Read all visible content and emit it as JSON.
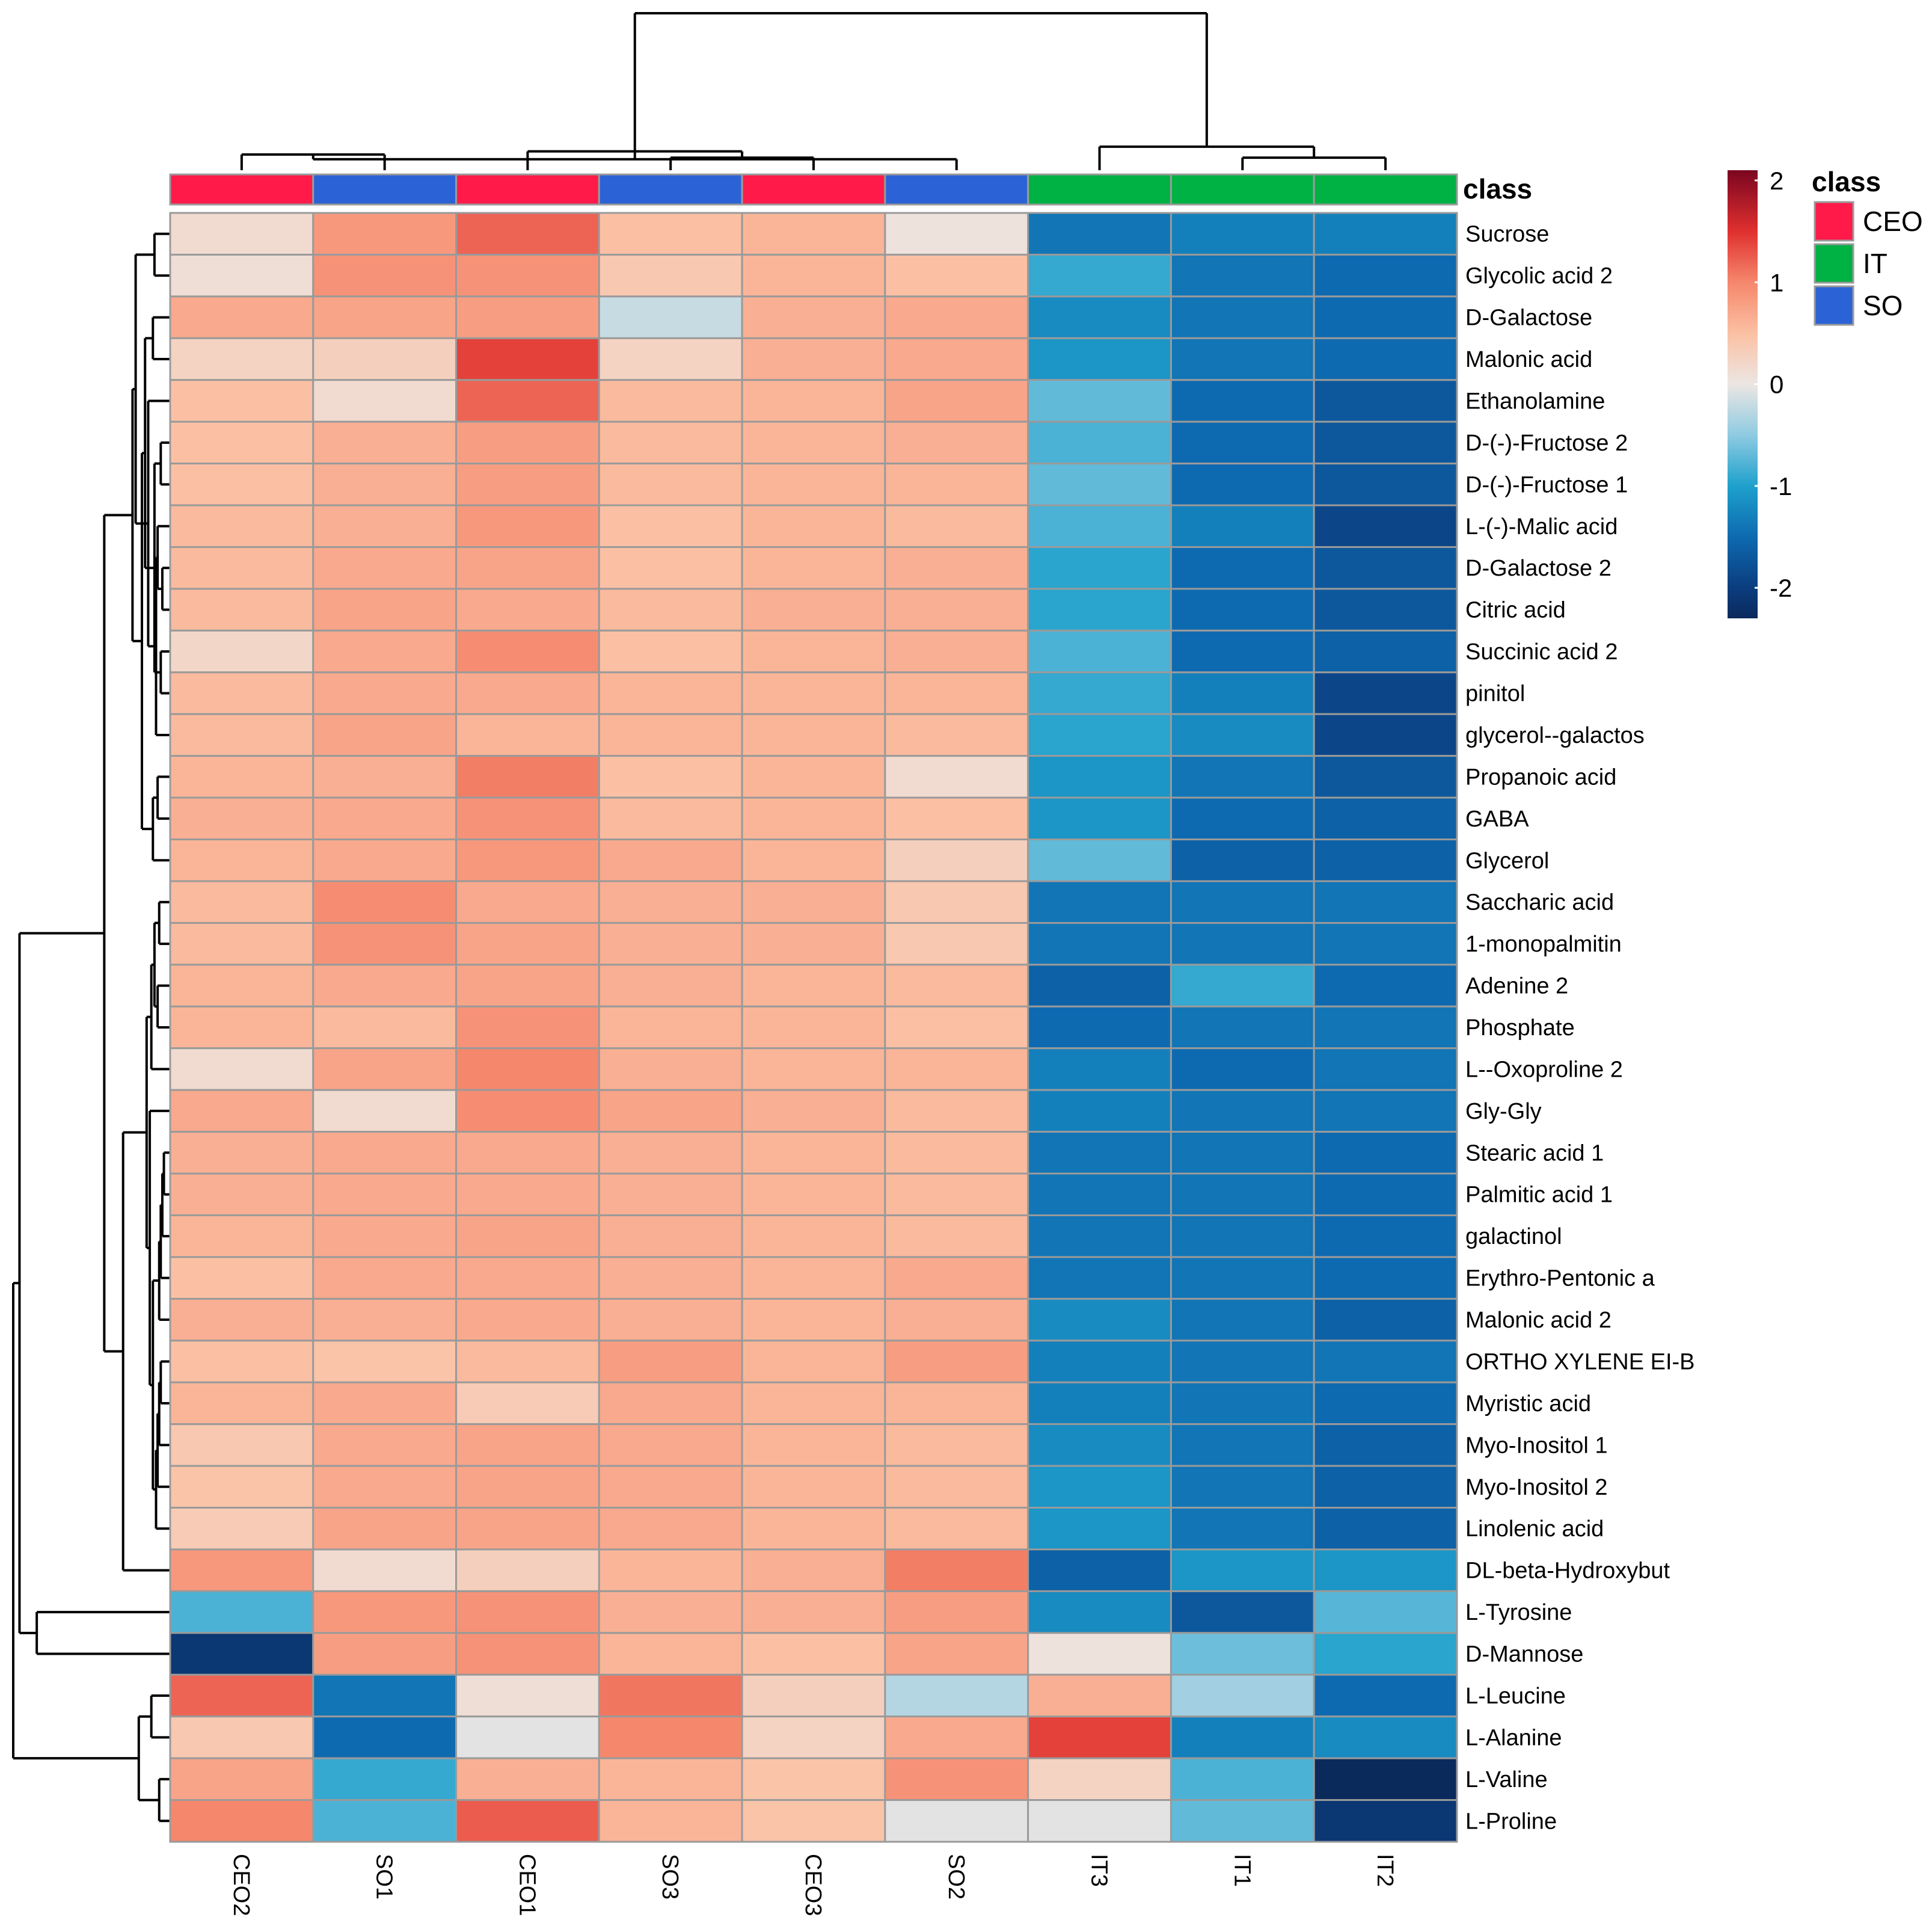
{
  "chart_data": {
    "type": "heatmap",
    "title": "",
    "columns": [
      "CEO2",
      "SO1",
      "CEO1",
      "SO3",
      "CEO3",
      "SO2",
      "IT3",
      "IT1",
      "IT2"
    ],
    "column_classes": [
      "CEO",
      "SO",
      "CEO",
      "SO",
      "CEO",
      "SO",
      "IT",
      "IT",
      "IT"
    ],
    "annotation_title": "class",
    "rows": [
      "Sucrose",
      "Glycolic acid   2",
      "D-Galactose",
      "Malonic acid",
      "Ethanolamine",
      "D-(-)-Fructose 2",
      "D-(-)-Fructose  1",
      "L-(-)-Malic acid",
      "D-Galactose 2",
      "Citric acid",
      "Succinic acid   2",
      "pinitol",
      "glycerol--galactos",
      "Propanoic acid",
      "GABA",
      "Glycerol",
      "Saccharic acid",
      "1-monopalmitin",
      "Adenine   2",
      "Phosphate",
      "L--Oxoproline   2",
      "Gly-Gly",
      "Stearic acid   1",
      "Palmitic acid   1",
      "galactinol",
      "Erythro-Pentonic a",
      "Malonic acid   2",
      "ORTHO XYLENE EI-B",
      "Myristic acid",
      "Myo-Inositol  1",
      "Myo-Inositol   2",
      "Linolenic acid",
      "DL-beta-Hydroxybut",
      "L-Tyrosine",
      "D-Mannose",
      "L-Leucine",
      "L-Alanine",
      "L-Valine",
      "L-Proline"
    ],
    "values": [
      [
        0.15,
        0.85,
        1.2,
        0.5,
        0.6,
        0.05,
        -1.4,
        -1.3,
        -1.3
      ],
      [
        0.1,
        0.9,
        0.9,
        0.4,
        0.6,
        0.5,
        -0.9,
        -1.4,
        -1.5
      ],
      [
        0.7,
        0.75,
        0.8,
        -0.2,
        0.65,
        0.7,
        -1.2,
        -1.4,
        -1.5
      ],
      [
        0.25,
        0.3,
        1.4,
        0.25,
        0.65,
        0.7,
        -1.1,
        -1.4,
        -1.5
      ],
      [
        0.5,
        0.15,
        1.2,
        0.55,
        0.6,
        0.75,
        -0.7,
        -1.5,
        -1.7
      ],
      [
        0.5,
        0.65,
        0.8,
        0.55,
        0.6,
        0.65,
        -0.8,
        -1.5,
        -1.7
      ],
      [
        0.5,
        0.65,
        0.8,
        0.55,
        0.6,
        0.6,
        -0.7,
        -1.5,
        -1.7
      ],
      [
        0.55,
        0.65,
        0.85,
        0.5,
        0.6,
        0.55,
        -0.8,
        -1.3,
        -1.9
      ],
      [
        0.55,
        0.7,
        0.75,
        0.5,
        0.6,
        0.65,
        -0.95,
        -1.5,
        -1.7
      ],
      [
        0.55,
        0.75,
        0.7,
        0.55,
        0.65,
        0.65,
        -0.95,
        -1.5,
        -1.7
      ],
      [
        0.2,
        0.7,
        0.95,
        0.5,
        0.6,
        0.65,
        -0.8,
        -1.5,
        -1.6
      ],
      [
        0.55,
        0.7,
        0.7,
        0.6,
        0.6,
        0.6,
        -0.9,
        -1.3,
        -1.9
      ],
      [
        0.55,
        0.75,
        0.6,
        0.6,
        0.6,
        0.55,
        -0.95,
        -1.2,
        -1.9
      ],
      [
        0.6,
        0.65,
        1.05,
        0.5,
        0.6,
        0.15,
        -1.1,
        -1.4,
        -1.7
      ],
      [
        0.65,
        0.7,
        0.9,
        0.55,
        0.6,
        0.5,
        -1.1,
        -1.5,
        -1.6
      ],
      [
        0.6,
        0.7,
        0.85,
        0.7,
        0.6,
        0.3,
        -0.7,
        -1.6,
        -1.6
      ],
      [
        0.55,
        0.95,
        0.7,
        0.65,
        0.65,
        0.4,
        -1.4,
        -1.4,
        -1.4
      ],
      [
        0.55,
        0.9,
        0.75,
        0.65,
        0.65,
        0.4,
        -1.4,
        -1.4,
        -1.4
      ],
      [
        0.6,
        0.7,
        0.75,
        0.65,
        0.6,
        0.55,
        -1.6,
        -0.9,
        -1.5
      ],
      [
        0.6,
        0.55,
        0.9,
        0.6,
        0.6,
        0.5,
        -1.5,
        -1.4,
        -1.4
      ],
      [
        0.15,
        0.75,
        1.0,
        0.65,
        0.6,
        0.6,
        -1.3,
        -1.5,
        -1.4
      ],
      [
        0.7,
        0.15,
        0.95,
        0.75,
        0.65,
        0.55,
        -1.3,
        -1.4,
        -1.4
      ],
      [
        0.65,
        0.7,
        0.7,
        0.65,
        0.6,
        0.55,
        -1.4,
        -1.4,
        -1.5
      ],
      [
        0.65,
        0.7,
        0.7,
        0.65,
        0.6,
        0.55,
        -1.4,
        -1.4,
        -1.5
      ],
      [
        0.6,
        0.7,
        0.75,
        0.65,
        0.6,
        0.55,
        -1.4,
        -1.4,
        -1.5
      ],
      [
        0.5,
        0.7,
        0.7,
        0.65,
        0.6,
        0.7,
        -1.4,
        -1.4,
        -1.5
      ],
      [
        0.65,
        0.65,
        0.7,
        0.65,
        0.6,
        0.65,
        -1.2,
        -1.4,
        -1.6
      ],
      [
        0.5,
        0.45,
        0.55,
        0.8,
        0.6,
        0.8,
        -1.3,
        -1.4,
        -1.4
      ],
      [
        0.6,
        0.7,
        0.35,
        0.7,
        0.6,
        0.6,
        -1.3,
        -1.4,
        -1.5
      ],
      [
        0.4,
        0.7,
        0.75,
        0.7,
        0.6,
        0.55,
        -1.2,
        -1.4,
        -1.6
      ],
      [
        0.45,
        0.7,
        0.75,
        0.7,
        0.6,
        0.55,
        -1.1,
        -1.4,
        -1.6
      ],
      [
        0.35,
        0.75,
        0.75,
        0.7,
        0.6,
        0.55,
        -1.1,
        -1.4,
        -1.6
      ],
      [
        0.85,
        0.15,
        0.3,
        0.6,
        0.65,
        1.05,
        -1.6,
        -1.1,
        -1.1
      ],
      [
        -0.8,
        0.85,
        0.9,
        0.65,
        0.65,
        0.8,
        -1.2,
        -1.7,
        -0.75
      ],
      [
        -2.1,
        0.8,
        0.9,
        0.6,
        0.5,
        0.75,
        0.05,
        -0.65,
        -0.95
      ],
      [
        1.2,
        -1.4,
        0.1,
        1.1,
        0.3,
        -0.3,
        0.65,
        -0.4,
        -1.5
      ],
      [
        0.4,
        -1.5,
        -0.05,
        1.0,
        0.25,
        0.7,
        1.4,
        -1.3,
        -1.2
      ],
      [
        0.75,
        -0.9,
        0.65,
        0.6,
        0.45,
        0.9,
        0.25,
        -0.8,
        -2.3
      ],
      [
        1.0,
        -0.8,
        1.25,
        0.6,
        0.45,
        -0.05,
        -0.05,
        -0.7,
        -2.1
      ]
    ],
    "color_scale": {
      "range": [
        -2.3,
        2.1
      ],
      "ticks": [
        2,
        1,
        0,
        -1,
        -2
      ],
      "stops": [
        [
          -2.3,
          "#0b2a5c"
        ],
        [
          -2.0,
          "#0b3d7e"
        ],
        [
          -1.5,
          "#0e6ab0"
        ],
        [
          -1.0,
          "#1ea1cc"
        ],
        [
          -0.5,
          "#8fcbe2"
        ],
        [
          0.0,
          "#ece6e3"
        ],
        [
          0.5,
          "#fbc0a3"
        ],
        [
          1.0,
          "#f5876c"
        ],
        [
          1.5,
          "#e0302f"
        ],
        [
          2.1,
          "#7a0520"
        ]
      ]
    },
    "legend": {
      "title": "class",
      "items": [
        {
          "label": "CEO",
          "color": "#ff1a4a"
        },
        {
          "label": "IT",
          "color": "#00b143"
        },
        {
          "label": "SO",
          "color": "#2b62d6"
        }
      ]
    },
    "column_tree": {
      "leaves": 9,
      "nodes": [
        [
          0,
          1,
          0.1
        ],
        [
          3,
          4,
          0.08
        ],
        [
          9,
          5,
          0.07
        ],
        [
          2,
          10,
          0.12
        ],
        [
          8,
          7,
          0.08
        ],
        [
          11,
          12,
          0.12
        ],
        [
          6,
          13,
          0.15
        ],
        [
          14,
          15,
          1.0
        ]
      ]
    },
    "row_tree": {
      "leaves": 39,
      "nodes": [
        [
          0,
          1,
          0.1
        ],
        [
          5,
          6,
          0.06
        ],
        [
          8,
          9,
          0.05
        ],
        [
          10,
          11,
          0.06
        ],
        [
          41,
          7,
          0.08
        ],
        [
          42,
          40,
          0.1
        ],
        [
          43,
          12,
          0.09
        ],
        [
          2,
          3,
          0.11
        ],
        [
          45,
          4,
          0.14
        ],
        [
          44,
          46,
          0.16
        ],
        [
          13,
          14,
          0.08
        ],
        [
          49,
          15,
          0.11
        ],
        [
          48,
          50,
          0.18
        ],
        [
          39,
          47,
          0.22
        ],
        [
          52,
          51,
          0.24
        ],
        [
          22,
          23,
          0.04
        ],
        [
          54,
          24,
          0.05
        ],
        [
          55,
          25,
          0.06
        ],
        [
          56,
          26,
          0.07
        ],
        [
          27,
          28,
          0.06
        ],
        [
          58,
          29,
          0.07
        ],
        [
          59,
          30,
          0.08
        ],
        [
          60,
          31,
          0.09
        ],
        [
          57,
          61,
          0.11
        ],
        [
          62,
          21,
          0.13
        ],
        [
          16,
          17,
          0.07
        ],
        [
          18,
          19,
          0.08
        ],
        [
          64,
          65,
          0.1
        ],
        [
          66,
          20,
          0.12
        ],
        [
          63,
          67,
          0.15
        ],
        [
          68,
          32,
          0.3
        ],
        [
          53,
          69,
          0.42
        ],
        [
          33,
          34,
          0.85
        ],
        [
          70,
          71,
          0.96
        ],
        [
          37,
          38,
          0.07
        ],
        [
          35,
          36,
          0.12
        ],
        [
          73,
          74,
          0.2
        ],
        [
          72,
          75,
          1.0
        ]
      ]
    }
  }
}
